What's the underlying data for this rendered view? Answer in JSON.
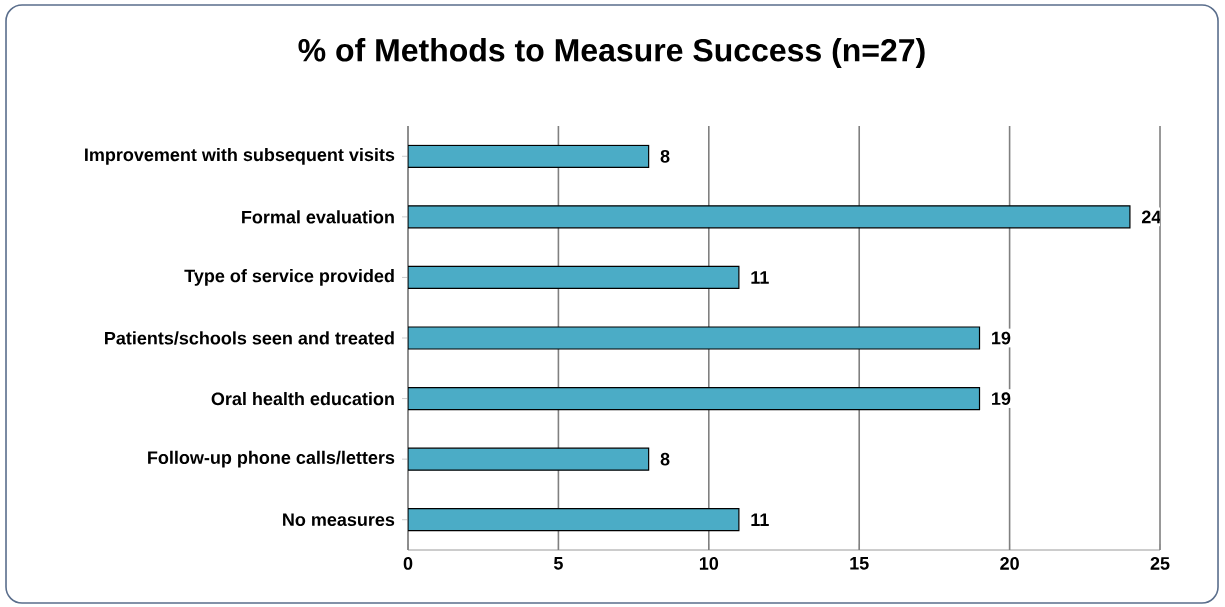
{
  "chart_data": {
    "type": "bar",
    "orientation": "horizontal",
    "title": "% of Methods to Measure Success (n=27)",
    "categories": [
      "Improvement with subsequent visits",
      "Formal evaluation",
      "Type of service provided",
      "Patients/schools seen and treated",
      "Oral health education",
      "Follow-up phone calls/letters",
      "No measures"
    ],
    "values": [
      8,
      24,
      11,
      19,
      19,
      8,
      11
    ],
    "color": "#4bacc6",
    "xlim": [
      0,
      25
    ],
    "xticks": [
      0,
      5,
      10,
      15,
      20,
      25
    ],
    "grid": "x",
    "data_labels": true
  }
}
